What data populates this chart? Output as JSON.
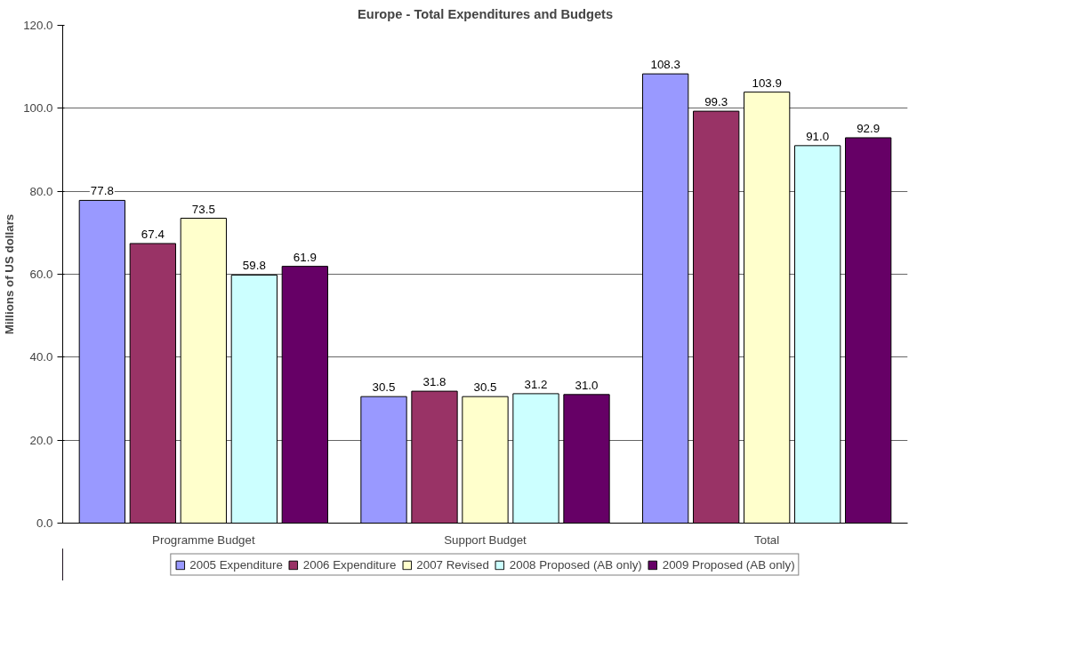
{
  "chart_data": {
    "type": "bar",
    "title": "Europe - Total Expenditures and Budgets",
    "ylabel": "Millions of US dollars",
    "categories": [
      "Programme Budget",
      "Support Budget",
      "Total"
    ],
    "series": [
      {
        "name": "2005 Expenditure",
        "color": "#9999ff",
        "values": [
          77.8,
          30.5,
          108.3
        ],
        "value_labels": [
          "77.8",
          "30.5",
          "108.3"
        ]
      },
      {
        "name": "2006 Expenditure",
        "color": "#993366",
        "values": [
          67.4,
          31.8,
          99.3
        ],
        "value_labels": [
          "67.4",
          "31.8",
          "99.3"
        ]
      },
      {
        "name": "2007 Revised",
        "color": "#ffffcc",
        "values": [
          73.5,
          30.5,
          103.9
        ],
        "value_labels": [
          "73.5",
          "30.5",
          "103.9"
        ]
      },
      {
        "name": "2008 Proposed (AB only)",
        "color": "#ccffff",
        "values": [
          59.8,
          31.2,
          91.0
        ],
        "value_labels": [
          "59.8",
          "31.2",
          "91.0"
        ]
      },
      {
        "name": "2009 Proposed (AB only)",
        "color": "#660066",
        "values": [
          61.9,
          31.0,
          92.9
        ],
        "value_labels": [
          "61.9",
          "31.0",
          "92.9"
        ]
      }
    ],
    "ylim": [
      0,
      120
    ],
    "yticks": [
      {
        "value": 0,
        "label": "0.0"
      },
      {
        "value": 20,
        "label": "20.0"
      },
      {
        "value": 40,
        "label": "40.0"
      },
      {
        "value": 60,
        "label": "60.0"
      },
      {
        "value": 80,
        "label": "80.0"
      },
      {
        "value": 100,
        "label": "100.0"
      },
      {
        "value": 120,
        "label": "120.0"
      }
    ],
    "grid": "y",
    "legend": "bottom"
  }
}
